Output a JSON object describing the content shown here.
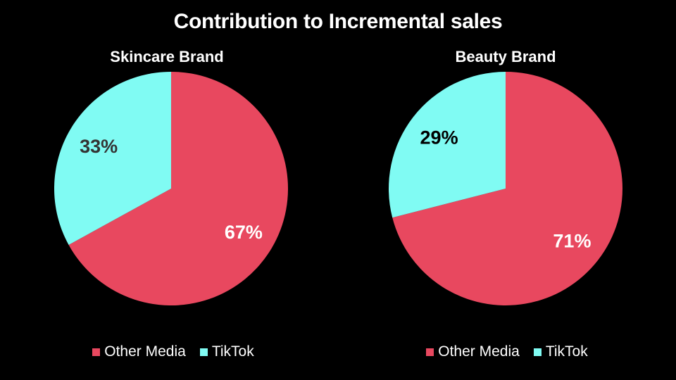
{
  "title": "Contribution to Incremental sales",
  "colors": {
    "other_media": "#e8485f",
    "tiktok": "#80fbf3",
    "background": "#000000"
  },
  "chart_data": [
    {
      "type": "pie",
      "title": "Skincare Brand",
      "categories": [
        "Other Media",
        "TikTok"
      ],
      "values": [
        67,
        33
      ],
      "labels": [
        "67%",
        "33%"
      ],
      "label_colors": [
        "#ffffff",
        "#333333"
      ],
      "legend": {
        "placement": "bottom",
        "entries": [
          "Other Media",
          "TikTok"
        ]
      }
    },
    {
      "type": "pie",
      "title": "Beauty Brand",
      "categories": [
        "Other Media",
        "TikTok"
      ],
      "values": [
        71,
        29
      ],
      "labels": [
        "71%",
        "29%"
      ],
      "label_colors": [
        "#ffffff",
        "#000000"
      ],
      "legend": {
        "placement": "bottom",
        "entries": [
          "Other Media",
          "TikTok"
        ]
      }
    }
  ]
}
